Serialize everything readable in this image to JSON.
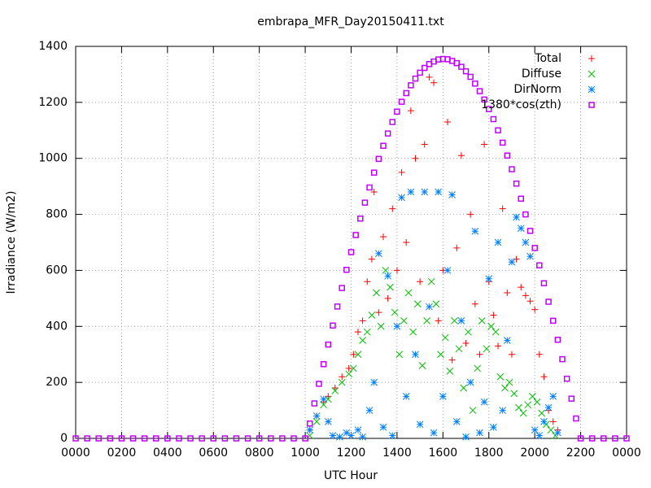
{
  "chart_data": {
    "type": "scatter",
    "title": "embrapa_MFR_Day20150411.txt",
    "x_label": "UTC Hour",
    "y_label": "Irradiance (W/m2)",
    "xlim": [
      0,
      24
    ],
    "ylim": [
      0,
      1400
    ],
    "xticks": [
      {
        "value": 0,
        "label": "0000"
      },
      {
        "value": 2,
        "label": "0200"
      },
      {
        "value": 4,
        "label": "0400"
      },
      {
        "value": 6,
        "label": "0600"
      },
      {
        "value": 8,
        "label": "0800"
      },
      {
        "value": 10,
        "label": "1000"
      },
      {
        "value": 12,
        "label": "1200"
      },
      {
        "value": 14,
        "label": "1400"
      },
      {
        "value": 16,
        "label": "1600"
      },
      {
        "value": 18,
        "label": "1800"
      },
      {
        "value": 20,
        "label": "2000"
      },
      {
        "value": 22,
        "label": "2200"
      },
      {
        "value": 24,
        "label": "0000"
      }
    ],
    "yticks": [
      0,
      200,
      400,
      600,
      800,
      1000,
      1200,
      1400
    ],
    "grid": true,
    "legend": "top-right",
    "series": [
      {
        "name": "Total",
        "color": "#ff0000",
        "marker": "plus",
        "x": [
          10.2,
          10.5,
          10.8,
          11.0,
          11.3,
          11.6,
          11.9,
          12.1,
          12.3,
          12.5,
          12.7,
          12.9,
          13.0,
          13.2,
          13.4,
          13.6,
          13.8,
          14.0,
          14.2,
          14.4,
          14.6,
          14.8,
          15.0,
          15.2,
          15.4,
          15.6,
          15.8,
          16.0,
          16.2,
          16.4,
          16.6,
          16.8,
          17.0,
          17.2,
          17.4,
          17.6,
          17.8,
          18.0,
          18.2,
          18.4,
          18.6,
          18.8,
          19.0,
          19.2,
          19.4,
          19.6,
          19.8,
          20.0,
          20.2,
          20.4,
          20.6,
          20.8,
          21.0
        ],
        "values": [
          30,
          80,
          130,
          150,
          180,
          220,
          250,
          300,
          380,
          420,
          560,
          640,
          880,
          450,
          720,
          500,
          820,
          600,
          950,
          700,
          1170,
          1000,
          560,
          1050,
          1290,
          1270,
          420,
          600,
          1130,
          280,
          680,
          1010,
          340,
          800,
          480,
          300,
          1050,
          560,
          440,
          330,
          820,
          520,
          300,
          640,
          540,
          510,
          490,
          460,
          300,
          220,
          100,
          60,
          30
        ]
      },
      {
        "name": "Diffuse",
        "color": "#00c000",
        "marker": "cross",
        "x": [
          10.2,
          10.5,
          10.8,
          11.0,
          11.3,
          11.6,
          11.9,
          12.1,
          12.3,
          12.5,
          12.7,
          12.9,
          13.1,
          13.3,
          13.5,
          13.7,
          13.9,
          14.1,
          14.3,
          14.5,
          14.7,
          14.9,
          15.1,
          15.3,
          15.5,
          15.7,
          15.9,
          16.1,
          16.3,
          16.5,
          16.7,
          16.9,
          17.1,
          17.3,
          17.5,
          17.7,
          17.9,
          18.1,
          18.3,
          18.5,
          18.7,
          18.9,
          19.1,
          19.3,
          19.5,
          19.7,
          19.9,
          20.1,
          20.3,
          20.5,
          20.7,
          20.9
        ],
        "values": [
          10,
          60,
          120,
          140,
          170,
          200,
          230,
          250,
          300,
          350,
          380,
          440,
          520,
          400,
          600,
          540,
          450,
          300,
          420,
          520,
          380,
          480,
          260,
          420,
          560,
          480,
          300,
          360,
          240,
          420,
          320,
          180,
          380,
          100,
          250,
          420,
          320,
          400,
          380,
          220,
          180,
          200,
          160,
          110,
          90,
          120,
          150,
          130,
          90,
          50,
          30,
          10
        ]
      },
      {
        "name": "DirNorm",
        "color": "#0080ff",
        "marker": "star",
        "x": [
          10.2,
          10.5,
          10.8,
          11.0,
          11.2,
          11.5,
          11.8,
          12.0,
          12.3,
          12.5,
          12.8,
          13.0,
          13.2,
          13.4,
          13.6,
          13.8,
          14.0,
          14.2,
          14.4,
          14.6,
          14.8,
          15.0,
          15.2,
          15.4,
          15.6,
          15.8,
          16.0,
          16.2,
          16.4,
          16.6,
          16.8,
          17.0,
          17.2,
          17.4,
          17.6,
          17.8,
          18.0,
          18.2,
          18.4,
          18.6,
          18.8,
          19.0,
          19.2,
          19.4,
          19.6,
          19.8,
          20.0,
          20.2,
          20.4,
          20.6,
          20.8,
          21.0
        ],
        "values": [
          30,
          80,
          140,
          60,
          10,
          5,
          20,
          10,
          30,
          5,
          100,
          200,
          660,
          40,
          580,
          10,
          400,
          860,
          150,
          880,
          300,
          50,
          880,
          470,
          20,
          880,
          150,
          600,
          870,
          60,
          420,
          5,
          200,
          740,
          20,
          130,
          570,
          40,
          700,
          100,
          350,
          630,
          790,
          750,
          700,
          650,
          30,
          10,
          60,
          110,
          150,
          20
        ]
      },
      {
        "name": "1380*cos(zth)",
        "color": "#c000ff",
        "marker": "square",
        "x": [
          0,
          0.5,
          1,
          1.5,
          2,
          2.5,
          3,
          3.5,
          4,
          4.5,
          5,
          5.5,
          6,
          6.5,
          7,
          7.5,
          8,
          8.5,
          9,
          9.5,
          10,
          10.2,
          10.4,
          10.6,
          10.8,
          11.0,
          11.2,
          11.4,
          11.6,
          11.8,
          12.0,
          12.2,
          12.4,
          12.6,
          12.8,
          13.0,
          13.2,
          13.4,
          13.6,
          13.8,
          14.0,
          14.2,
          14.4,
          14.6,
          14.8,
          15.0,
          15.2,
          15.4,
          15.6,
          15.8,
          16.0,
          16.2,
          16.4,
          16.6,
          16.8,
          17.0,
          17.2,
          17.4,
          17.6,
          17.8,
          18.0,
          18.2,
          18.4,
          18.6,
          18.8,
          19.0,
          19.2,
          19.4,
          19.6,
          19.8,
          20.0,
          20.2,
          20.4,
          20.6,
          20.8,
          21.0,
          21.2,
          21.4,
          21.6,
          21.8,
          22,
          22.5,
          23,
          23.5,
          24
        ],
        "values": [
          0,
          0,
          0,
          0,
          0,
          0,
          0,
          0,
          0,
          0,
          0,
          0,
          0,
          0,
          0,
          0,
          0,
          0,
          0,
          0,
          0,
          53,
          125,
          195,
          265,
          335,
          403,
          471,
          537,
          602,
          665,
          726,
          785,
          842,
          896,
          949,
          998,
          1045,
          1089,
          1130,
          1167,
          1202,
          1233,
          1261,
          1285,
          1306,
          1323,
          1337,
          1346,
          1353,
          1355,
          1354,
          1348,
          1340,
          1327,
          1311,
          1291,
          1267,
          1240,
          1210,
          1176,
          1140,
          1100,
          1056,
          1010,
          961,
          910,
          856,
          800,
          741,
          680,
          618,
          554,
          488,
          420,
          352,
          283,
          213,
          142,
          71,
          0,
          0,
          0,
          0,
          0
        ]
      }
    ]
  }
}
